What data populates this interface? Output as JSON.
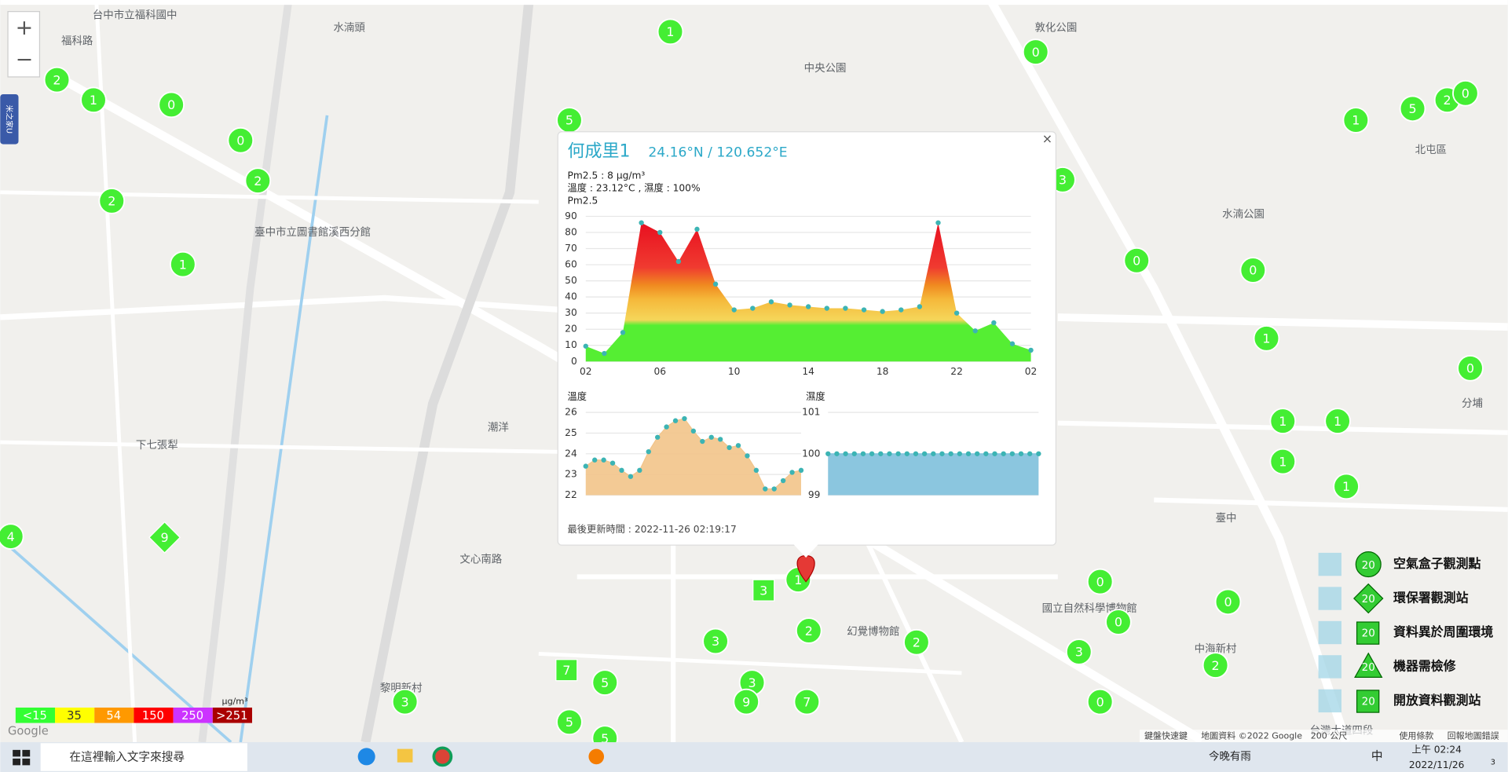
{
  "map": {
    "zoom_in": "+",
    "zoom_out": "−",
    "side_tab": "米之家U",
    "places": [
      "台中市立福科國中",
      "水湳頭",
      "福科路",
      "敦化公園",
      "中央公園",
      "北屯區",
      "臺中",
      "潮洋",
      "下七張犁",
      "黎明新村",
      "中海新村",
      "分埔",
      "水湳公園",
      "臺中市立圖書館溪西分館",
      "國立自然科學博物館",
      "幻覺博物館",
      "文心南路",
      "台灣大道四段"
    ],
    "circle_markers": [
      "1",
      "0",
      "2",
      "1",
      "0",
      "5",
      "0",
      "2",
      "2",
      "1",
      "3",
      "0",
      "0",
      "1",
      "5",
      "2",
      "0",
      "1",
      "0",
      "1",
      "1",
      "1",
      "1",
      "4",
      "0",
      "0",
      "0",
      "3",
      "2",
      "0",
      "2",
      "3",
      "2",
      "3",
      "9",
      "7",
      "5",
      "5",
      "3",
      "5",
      "1"
    ],
    "square_markers": [
      "3",
      "7"
    ],
    "diamond_markers": [
      "9"
    ]
  },
  "popup": {
    "close": "×",
    "title": "何成里1",
    "coords": "24.16°N / 120.652°E",
    "pm25_line": "Pm2.5 : 8 μg/m³",
    "weather_line": "溫度 : 23.12°C , 濕度 : 100%",
    "updated": "最後更新時間 : 2022-11-26 02:19:17",
    "charts": [
      {
        "type": "area",
        "title": "Pm2.5",
        "categories": [
          "02",
          null,
          null,
          null,
          "06",
          null,
          null,
          null,
          "10",
          null,
          null,
          null,
          "14",
          null,
          null,
          null,
          "18",
          null,
          null,
          null,
          "22",
          null,
          null,
          null,
          "02"
        ],
        "values": [
          9.5,
          5,
          18,
          86,
          80,
          62,
          82,
          48,
          32,
          33,
          37,
          35,
          34,
          33,
          33,
          32,
          31,
          32,
          34,
          86,
          30,
          19,
          24,
          11,
          7
        ],
        "ylim": [
          0,
          90
        ],
        "yticks": [
          0,
          10,
          20,
          30,
          40,
          50,
          60,
          70,
          80,
          90
        ],
        "color": "#3cb4b4",
        "grid": true
      },
      {
        "type": "area",
        "title": "溫度",
        "values": [
          23.4,
          23.7,
          23.7,
          23.55,
          23.2,
          22.9,
          23.2,
          24.1,
          24.8,
          25.3,
          25.6,
          25.7,
          25.1,
          24.6,
          24.8,
          24.7,
          24.3,
          24.4,
          23.9,
          23.2,
          22.3,
          22.3,
          22.7,
          23.1,
          23.2
        ],
        "ylim": [
          22,
          26
        ],
        "yticks": [
          22,
          23,
          24,
          25,
          26
        ],
        "color": "#f2c48a",
        "grid": true
      },
      {
        "type": "area",
        "title": "濕度",
        "values": [
          100,
          100,
          100,
          100,
          100,
          100,
          100,
          100,
          100,
          100,
          100,
          100,
          100,
          100,
          100,
          100,
          100,
          100,
          100,
          100,
          100,
          100,
          100,
          100,
          100
        ],
        "ylim": [
          99,
          101
        ],
        "yticks": [
          99,
          100,
          101
        ],
        "color": "#7ec0dc",
        "grid": true
      }
    ]
  },
  "legend": {
    "icon_number": "20",
    "items": [
      "空氣盒子觀測點",
      "環保署觀測站",
      "資料異於周圍環境",
      "機器需檢修",
      "開放資料觀測站"
    ]
  },
  "aqi_scale": {
    "unit": "μg/m³",
    "labels": [
      "<15",
      "35",
      "54",
      "150",
      "250",
      ">251"
    ],
    "colors": [
      "#33ff33",
      "#ffff00",
      "#ff9900",
      "#ff0000",
      "#cc33ff",
      "#aa0000"
    ]
  },
  "attribution": [
    "Google",
    "鍵盤快速鍵",
    "地圖資料 ©2022 Google",
    "200 公尺",
    "使用條款",
    "回報地圖錯誤"
  ],
  "taskbar": {
    "search": "在這裡輸入文字來搜尋",
    "weather": "今晚有雨",
    "ime": "中",
    "time": "上午 02:24",
    "date": "2022/11/26",
    "notif": "3"
  }
}
